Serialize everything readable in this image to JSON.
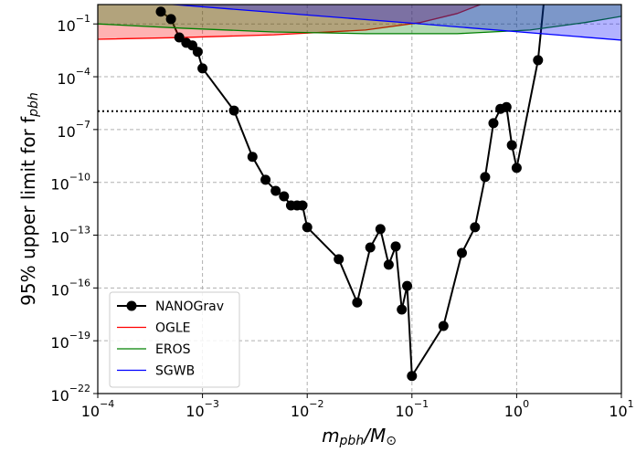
{
  "chart_data": {
    "type": "line",
    "xlabel": [
      "m",
      "pbh",
      "/M",
      "⊙"
    ],
    "ylabel": [
      "95% upper limit for f",
      "pbh"
    ],
    "xscale": "log",
    "yscale": "log",
    "grid": true,
    "legend": "lower left",
    "xlim": [
      0.0001,
      10
    ],
    "ylim": [
      1e-22,
      1.26
    ],
    "xticks": [
      {
        "value": 0.0001,
        "label": "10−4"
      },
      {
        "value": 0.001,
        "label": "10−3"
      },
      {
        "value": 0.01,
        "label": "10−2"
      },
      {
        "value": 0.1,
        "label": "10−1"
      },
      {
        "value": 1,
        "label": "100"
      },
      {
        "value": 10,
        "label": "101"
      }
    ],
    "yticks": [
      {
        "value": 1e-22,
        "label": "10−22"
      },
      {
        "value": 1e-19,
        "label": "10−19"
      },
      {
        "value": 1e-16,
        "label": "10−16"
      },
      {
        "value": 1e-13,
        "label": "10−13"
      },
      {
        "value": 1e-10,
        "label": "10−10"
      },
      {
        "value": 1e-07,
        "label": "10−7"
      },
      {
        "value": 0.0001,
        "label": "10−4"
      },
      {
        "value": 0.1,
        "label": "10−1"
      }
    ],
    "hline": 1.1e-06,
    "series": [
      {
        "name": "NANOGrav",
        "color": "#000000",
        "marker": "o",
        "x": [
          0.0004,
          0.0005,
          0.0006,
          0.0007,
          0.0008,
          0.0009,
          0.001,
          0.002,
          0.003,
          0.004,
          0.005,
          0.006,
          0.007,
          0.008,
          0.009,
          0.01,
          0.02,
          0.03,
          0.04,
          0.05,
          0.06,
          0.07,
          0.08,
          0.09,
          0.1,
          0.2,
          0.3,
          0.4,
          0.5,
          0.6,
          0.7,
          0.8,
          0.9,
          1,
          1.6,
          2
        ],
        "values": [
          0.5,
          0.19,
          0.017,
          0.0085,
          0.006,
          0.0026,
          0.0003,
          1.2e-06,
          2.8e-09,
          1.4e-10,
          3.3e-11,
          1.6e-11,
          4.9e-12,
          4.9e-12,
          4.9e-12,
          2.8e-13,
          4.3e-15,
          1.5e-17,
          2e-14,
          2.2e-13,
          2.1e-15,
          2.3e-14,
          5.9e-18,
          1.3e-16,
          1e-21,
          6.9e-19,
          9.8e-15,
          2.8e-13,
          2e-10,
          2.3e-07,
          1.5e-06,
          1.9e-06,
          1.3e-08,
          6.6e-10,
          0.00087,
          500
        ]
      },
      {
        "name": "OGLE",
        "color": "#ff0000",
        "fill": true,
        "x": [
          0.0001,
          0.00065,
          0.0048,
          0.036,
          0.12,
          0.27,
          0.45
        ],
        "values": [
          0.0135,
          0.017,
          0.024,
          0.045,
          0.12,
          0.39,
          1.26
        ]
      },
      {
        "name": "EROS",
        "color": "#008000",
        "fill": true,
        "x": [
          0.0001,
          0.00065,
          0.0048,
          0.036,
          0.27,
          1.34,
          4.5,
          10
        ],
        "values": [
          0.1,
          0.057,
          0.035,
          0.028,
          0.028,
          0.045,
          0.12,
          0.27
        ]
      },
      {
        "name": "SGWB",
        "color": "#0000ff",
        "fill": true,
        "x": [
          0.0005,
          0.1,
          10
        ],
        "values": [
          1.3,
          0.11,
          0.012
        ]
      }
    ]
  }
}
